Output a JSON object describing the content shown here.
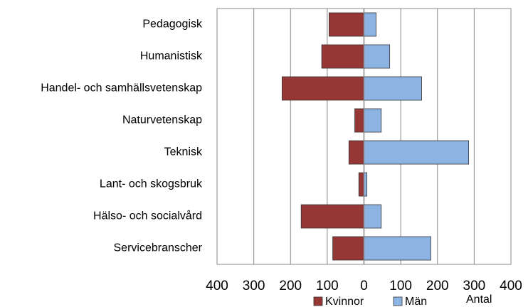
{
  "chart_data": {
    "type": "bar",
    "orientation": "horizontal",
    "categories": [
      "Pedagogisk",
      "Humanistisk",
      "Handel- och samhällsvetenskap",
      "Naturvetenskap",
      "Teknisk",
      "Lant- och skogsbruk",
      "Hälso- och socialvård",
      "Servicebranscher"
    ],
    "series": [
      {
        "name": "Kvinnor",
        "color": "#953735",
        "values": [
          -95,
          -115,
          -223,
          -25,
          -41,
          -14,
          -171,
          -85
        ]
      },
      {
        "name": "Män",
        "color": "#8db3e2",
        "values": [
          33,
          70,
          157,
          47,
          285,
          8,
          47,
          182
        ]
      }
    ],
    "xlabel": "Antal",
    "xlim": [
      -400,
      400
    ],
    "xticks": [
      {
        "value": -400,
        "label": "400"
      },
      {
        "value": -300,
        "label": "300"
      },
      {
        "value": -200,
        "label": "200"
      },
      {
        "value": -100,
        "label": "100"
      },
      0,
      100,
      200,
      300,
      400
    ],
    "grid": true,
    "legend": "bottom"
  }
}
